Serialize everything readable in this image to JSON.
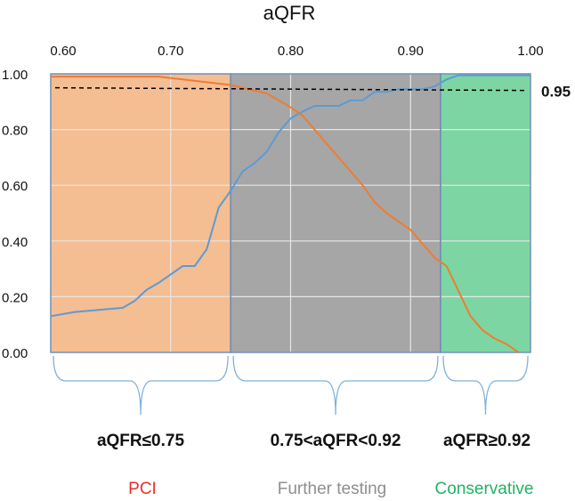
{
  "chart_data": {
    "type": "line",
    "title": "aQFR",
    "xlim": [
      0.6,
      1.0
    ],
    "ylim": [
      0.0,
      1.0
    ],
    "x_ticks": [
      "0.60",
      "0.70",
      "0.80",
      "0.90",
      "1.00"
    ],
    "y_ticks": [
      "1.00",
      "0.80",
      "0.60",
      "0.40",
      "0.20",
      "0.00"
    ],
    "x_tick_values": [
      0.6,
      0.7,
      0.8,
      0.9,
      1.0
    ],
    "y_tick_values": [
      1.0,
      0.8,
      0.6,
      0.4,
      0.2,
      0.0
    ],
    "axis_position": "top",
    "grid": true,
    "threshold": {
      "value": 0.95,
      "label": "0.95",
      "color": "#000000"
    },
    "series": [
      {
        "color": "#5b9bd5",
        "x": [
          0.6,
          0.62,
          0.66,
          0.67,
          0.68,
          0.69,
          0.7,
          0.71,
          0.72,
          0.73,
          0.74,
          0.75,
          0.76,
          0.77,
          0.78,
          0.79,
          0.8,
          0.81,
          0.82,
          0.83,
          0.84,
          0.85,
          0.86,
          0.87,
          0.88,
          0.89,
          0.9,
          0.91,
          0.92,
          0.93,
          0.94,
          0.95,
          1.0
        ],
        "y": [
          0.13,
          0.145,
          0.16,
          0.185,
          0.225,
          0.25,
          0.28,
          0.31,
          0.31,
          0.37,
          0.52,
          0.58,
          0.65,
          0.68,
          0.72,
          0.79,
          0.84,
          0.865,
          0.885,
          0.885,
          0.885,
          0.905,
          0.905,
          0.935,
          0.935,
          0.945,
          0.945,
          0.945,
          0.955,
          0.98,
          0.995,
          0.995,
          0.995
        ]
      },
      {
        "color": "#ed7d31",
        "x": [
          0.6,
          0.69,
          0.75,
          0.78,
          0.8,
          0.81,
          0.82,
          0.83,
          0.84,
          0.85,
          0.86,
          0.87,
          0.88,
          0.89,
          0.9,
          0.91,
          0.92,
          0.93,
          0.94,
          0.95,
          0.96,
          0.97,
          0.98,
          0.99
        ],
        "y": [
          0.99,
          0.99,
          0.96,
          0.93,
          0.88,
          0.85,
          0.8,
          0.75,
          0.7,
          0.65,
          0.6,
          0.54,
          0.5,
          0.47,
          0.44,
          0.39,
          0.34,
          0.31,
          0.22,
          0.13,
          0.08,
          0.05,
          0.03,
          0.0
        ]
      }
    ],
    "zones": [
      {
        "from": 0.6,
        "to": 0.75,
        "color": "#f5bd92"
      },
      {
        "from": 0.75,
        "to": 0.925,
        "color": "#a6a6a6"
      },
      {
        "from": 0.925,
        "to": 1.0,
        "color": "#7dd5a3"
      }
    ]
  },
  "decisions": [
    {
      "range": "aQFR≤0.75",
      "name": "PCI",
      "color": "#e8302a"
    },
    {
      "range": "0.75<aQFR<0.92",
      "name": "Further testing",
      "color": "#8f8f8f"
    },
    {
      "range": "aQFR≥0.92",
      "name": "Conservative",
      "color": "#22b264"
    }
  ]
}
